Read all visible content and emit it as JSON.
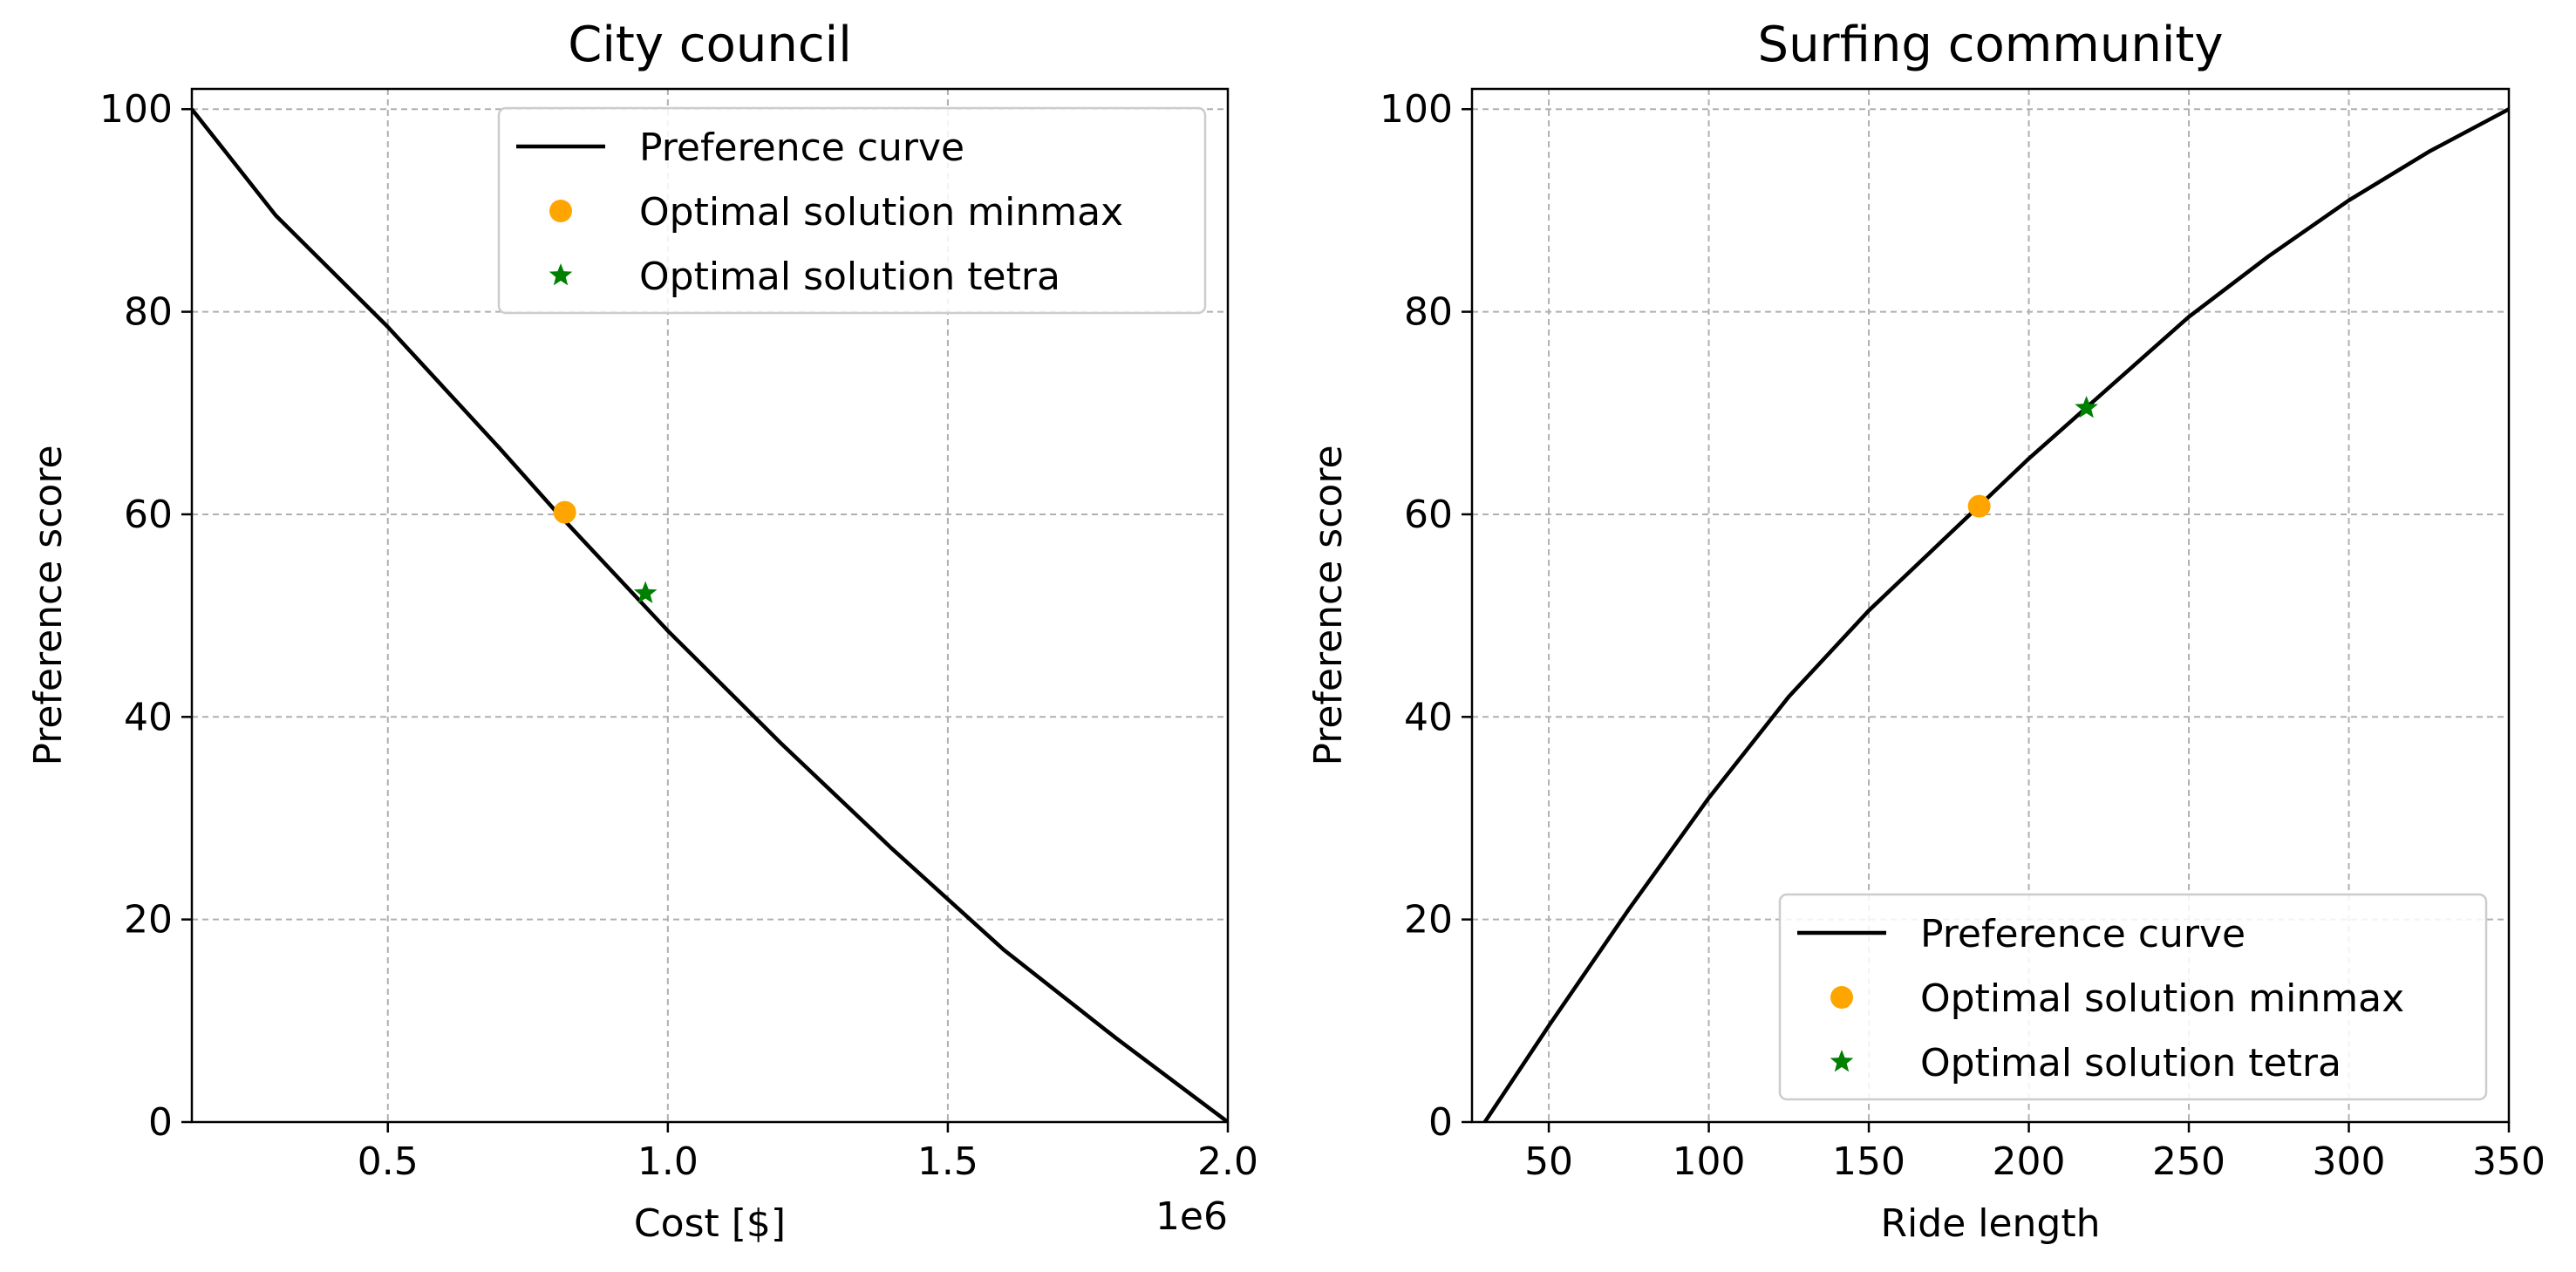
{
  "chart_data": [
    {
      "type": "line",
      "title": "City council",
      "xlabel": "Cost [$]",
      "ylabel": "Preference score",
      "x_offset_label": "1e6",
      "xlim": [
        0.15,
        2.0
      ],
      "ylim": [
        0,
        102
      ],
      "x_ticks": [
        0.5,
        1.0,
        1.5,
        2.0
      ],
      "x_tick_labels": [
        "0.5",
        "1.0",
        "1.5",
        "2.0"
      ],
      "y_ticks": [
        0,
        20,
        40,
        60,
        80,
        100
      ],
      "y_tick_labels": [
        "0",
        "20",
        "40",
        "60",
        "80",
        "100"
      ],
      "grid": true,
      "legend_position": "top-right",
      "series": [
        {
          "name": "Preference curve",
          "kind": "line",
          "color": "#000000",
          "x": [
            0.15,
            0.3,
            0.5,
            0.7,
            0.8,
            1.0,
            1.2,
            1.4,
            1.6,
            1.8,
            2.0
          ],
          "y": [
            100,
            89.5,
            78.5,
            66.5,
            60.3,
            48.5,
            37.5,
            27,
            17,
            8.3,
            0
          ]
        },
        {
          "name": "Optimal solution minmax",
          "kind": "scatter",
          "marker": "circle",
          "color": "#ffa500",
          "x": [
            0.816
          ],
          "y": [
            60.2
          ]
        },
        {
          "name": "Optimal solution tetra",
          "kind": "scatter",
          "marker": "star",
          "color": "#008000",
          "x": [
            0.96
          ],
          "y": [
            52.2
          ]
        }
      ]
    },
    {
      "type": "line",
      "title": "Surfing community",
      "xlabel": "Ride length",
      "ylabel": "Preference score",
      "xlim": [
        26,
        350
      ],
      "ylim": [
        0,
        102
      ],
      "x_ticks": [
        50,
        100,
        150,
        200,
        250,
        300,
        350
      ],
      "x_tick_labels": [
        "50",
        "100",
        "150",
        "200",
        "250",
        "300",
        "350"
      ],
      "y_ticks": [
        0,
        20,
        40,
        60,
        80,
        100
      ],
      "y_tick_labels": [
        "0",
        "20",
        "40",
        "60",
        "80",
        "100"
      ],
      "grid": true,
      "legend_position": "bottom-right",
      "series": [
        {
          "name": "Preference curve",
          "kind": "line",
          "color": "#000000",
          "x": [
            30,
            50,
            75,
            100,
            125,
            150,
            175,
            200,
            225,
            250,
            275,
            300,
            325,
            350
          ],
          "y": [
            0,
            9.5,
            21,
            32,
            42,
            50.5,
            58,
            65.5,
            72.5,
            79.5,
            85.5,
            91,
            95.8,
            100
          ]
        },
        {
          "name": "Optimal solution minmax",
          "kind": "scatter",
          "marker": "circle",
          "color": "#ffa500",
          "x": [
            184.5
          ],
          "y": [
            60.8
          ]
        },
        {
          "name": "Optimal solution tetra",
          "kind": "scatter",
          "marker": "star",
          "color": "#008000",
          "x": [
            218
          ],
          "y": [
            70.5
          ]
        }
      ]
    }
  ]
}
